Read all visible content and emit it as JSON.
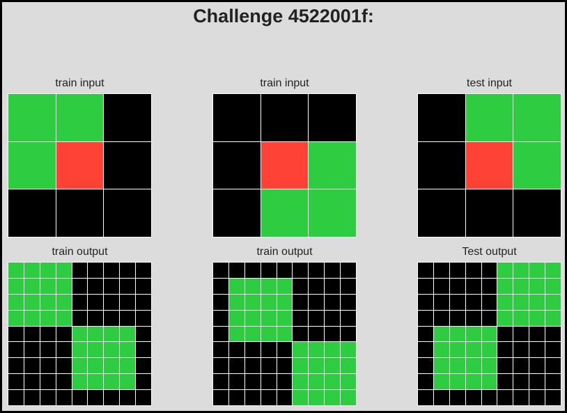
{
  "title": "Challenge 4522001f:",
  "palette": {
    "0": "#000000",
    "2": "#ff4136",
    "3": "#2ecc40"
  },
  "panels": [
    {
      "label": "train input",
      "grid": [
        [
          3,
          3,
          0
        ],
        [
          3,
          2,
          0
        ],
        [
          0,
          0,
          0
        ]
      ]
    },
    {
      "label": "train input",
      "grid": [
        [
          0,
          0,
          0
        ],
        [
          0,
          2,
          3
        ],
        [
          0,
          3,
          3
        ]
      ]
    },
    {
      "label": "test input",
      "grid": [
        [
          0,
          3,
          3
        ],
        [
          0,
          2,
          3
        ],
        [
          0,
          0,
          0
        ]
      ]
    },
    {
      "label": "train output",
      "grid": [
        [
          3,
          3,
          3,
          3,
          0,
          0,
          0,
          0,
          0
        ],
        [
          3,
          3,
          3,
          3,
          0,
          0,
          0,
          0,
          0
        ],
        [
          3,
          3,
          3,
          3,
          0,
          0,
          0,
          0,
          0
        ],
        [
          3,
          3,
          3,
          3,
          0,
          0,
          0,
          0,
          0
        ],
        [
          0,
          0,
          0,
          0,
          3,
          3,
          3,
          3,
          0
        ],
        [
          0,
          0,
          0,
          0,
          3,
          3,
          3,
          3,
          0
        ],
        [
          0,
          0,
          0,
          0,
          3,
          3,
          3,
          3,
          0
        ],
        [
          0,
          0,
          0,
          0,
          3,
          3,
          3,
          3,
          0
        ],
        [
          0,
          0,
          0,
          0,
          0,
          0,
          0,
          0,
          0
        ]
      ]
    },
    {
      "label": "train output",
      "grid": [
        [
          0,
          0,
          0,
          0,
          0,
          0,
          0,
          0,
          0
        ],
        [
          0,
          3,
          3,
          3,
          3,
          0,
          0,
          0,
          0
        ],
        [
          0,
          3,
          3,
          3,
          3,
          0,
          0,
          0,
          0
        ],
        [
          0,
          3,
          3,
          3,
          3,
          0,
          0,
          0,
          0
        ],
        [
          0,
          3,
          3,
          3,
          3,
          0,
          0,
          0,
          0
        ],
        [
          0,
          0,
          0,
          0,
          0,
          3,
          3,
          3,
          3
        ],
        [
          0,
          0,
          0,
          0,
          0,
          3,
          3,
          3,
          3
        ],
        [
          0,
          0,
          0,
          0,
          0,
          3,
          3,
          3,
          3
        ],
        [
          0,
          0,
          0,
          0,
          0,
          3,
          3,
          3,
          3
        ]
      ]
    },
    {
      "label": "Test output",
      "grid": [
        [
          0,
          0,
          0,
          0,
          0,
          3,
          3,
          3,
          3
        ],
        [
          0,
          0,
          0,
          0,
          0,
          3,
          3,
          3,
          3
        ],
        [
          0,
          0,
          0,
          0,
          0,
          3,
          3,
          3,
          3
        ],
        [
          0,
          0,
          0,
          0,
          0,
          3,
          3,
          3,
          3
        ],
        [
          0,
          3,
          3,
          3,
          3,
          0,
          0,
          0,
          0
        ],
        [
          0,
          3,
          3,
          3,
          3,
          0,
          0,
          0,
          0
        ],
        [
          0,
          3,
          3,
          3,
          3,
          0,
          0,
          0,
          0
        ],
        [
          0,
          3,
          3,
          3,
          3,
          0,
          0,
          0,
          0
        ],
        [
          0,
          0,
          0,
          0,
          0,
          0,
          0,
          0,
          0
        ]
      ]
    }
  ]
}
